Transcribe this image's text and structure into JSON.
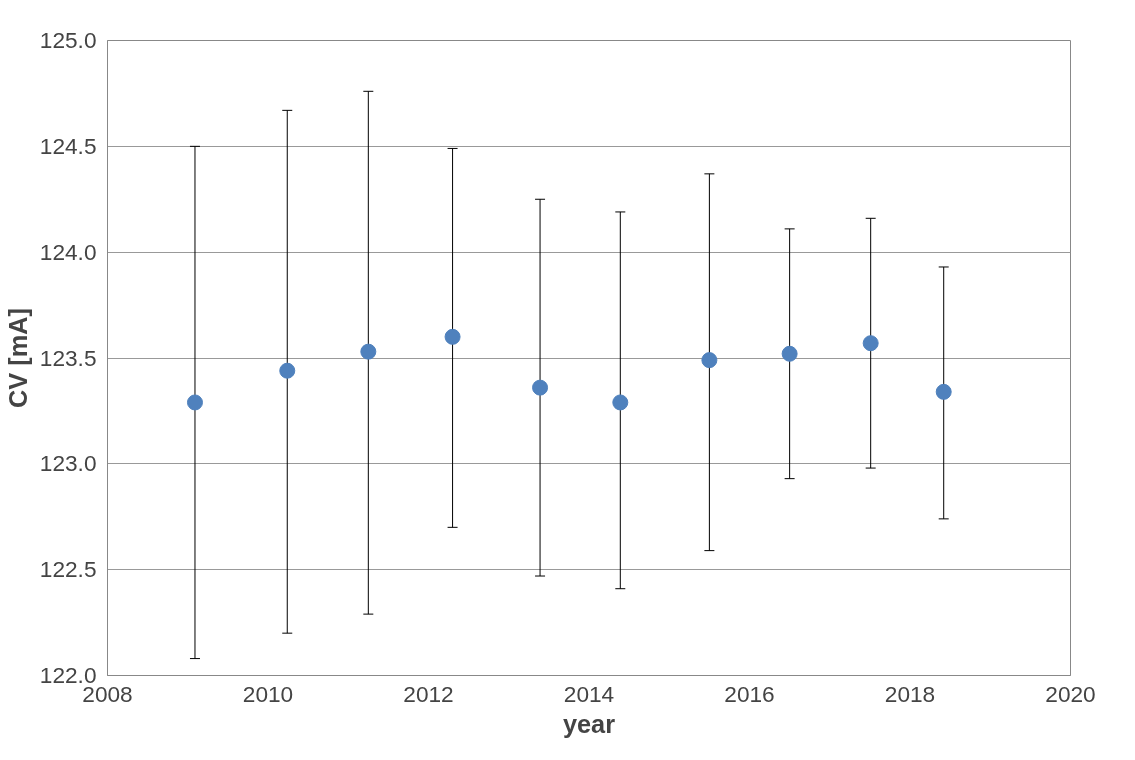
{
  "chart_data": {
    "type": "scatter",
    "xlabel": "year",
    "ylabel": "CV [mA]",
    "x": [
      2009.09,
      2010.24,
      2011.25,
      2012.3,
      2013.39,
      2014.39,
      2015.5,
      2016.5,
      2017.51,
      2018.42
    ],
    "values": [
      123.29,
      123.44,
      123.53,
      123.6,
      123.36,
      123.29,
      123.49,
      123.52,
      123.57,
      123.34
    ],
    "errors": [
      [
        122.08,
        124.5
      ],
      [
        122.2,
        124.67
      ],
      [
        122.29,
        124.76
      ],
      [
        122.7,
        124.49
      ],
      [
        122.47,
        124.25
      ],
      [
        122.41,
        124.19
      ],
      [
        122.59,
        124.37
      ],
      [
        122.93,
        124.11
      ],
      [
        122.98,
        124.16
      ],
      [
        122.74,
        123.93
      ]
    ],
    "color": "#4f81bd",
    "marker": "circle",
    "xlim": [
      2008,
      2020
    ],
    "xticks": [
      2008,
      2010,
      2012,
      2014,
      2016,
      2018,
      2020
    ],
    "ylim": [
      122.0,
      125.0
    ],
    "yticks": [
      {
        "value": 122.0,
        "label": "122.0"
      },
      {
        "value": 122.5,
        "label": "122.5"
      },
      {
        "value": 123.0,
        "label": "123.0"
      },
      {
        "value": 123.5,
        "label": "123.5"
      },
      {
        "value": 124.0,
        "label": "124.0"
      },
      {
        "value": 124.5,
        "label": "124.5"
      },
      {
        "value": 125.0,
        "label": "125.0"
      }
    ],
    "grid": "y"
  }
}
